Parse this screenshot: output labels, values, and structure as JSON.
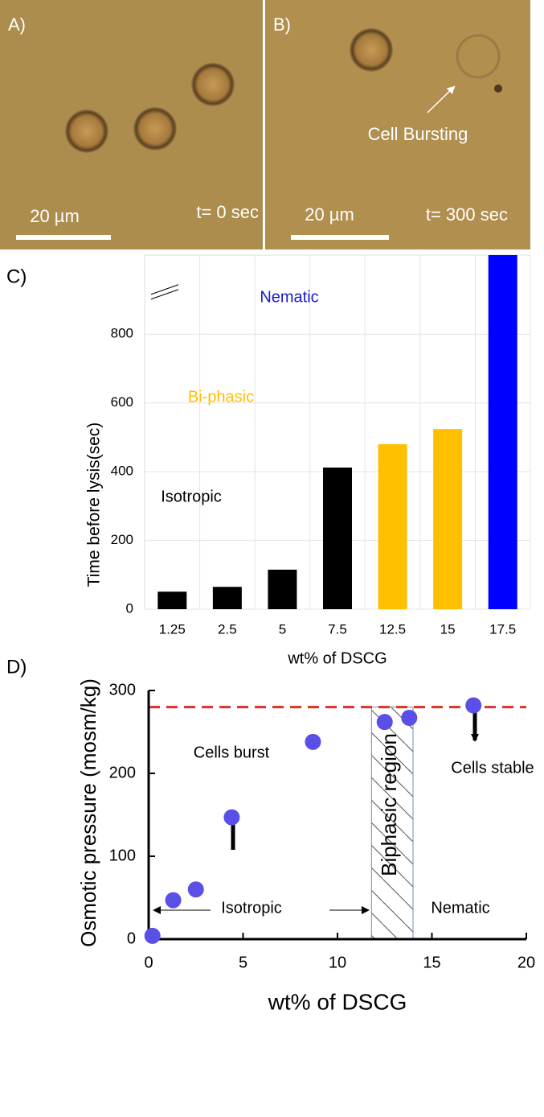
{
  "images": [
    {
      "label": "A)",
      "scale": "20 µm",
      "time": "t= 0 sec"
    },
    {
      "label": "B)",
      "scale": "20 µm",
      "time": "t= 300 sec",
      "annotation": "Cell Bursting"
    }
  ],
  "chart_data": [
    {
      "type": "bar",
      "panel": "C)",
      "ylabel": "Time before lysis(sec)",
      "xlabel": "wt% of DSCG",
      "categories": [
        "1.25",
        "2.5",
        "5",
        "7.5",
        "12.5",
        "15",
        "17.5"
      ],
      "values": [
        51,
        65,
        115,
        412,
        480,
        524,
        1030
      ],
      "colors": [
        "#000000",
        "#000000",
        "#000000",
        "#000000",
        "#ffc000",
        "#ffc000",
        "#0000ff"
      ],
      "ylim": [
        0,
        1030
      ],
      "yticks": [
        0,
        200,
        400,
        600,
        800
      ],
      "grid": true,
      "axis_break": 930,
      "annotations": [
        {
          "text": "Nematic",
          "color": "#1a1acc"
        },
        {
          "text": "Bi-phasic",
          "color": "#ffc000"
        },
        {
          "text": "Isotropic",
          "color": "#000000"
        }
      ]
    },
    {
      "type": "scatter",
      "panel": "D)",
      "ylabel": "Osmotic pressure (mosm/kg)",
      "xlabel": "wt% of DSCG",
      "x": [
        0.2,
        1.3,
        2.5,
        4.4,
        8.7,
        12.5,
        13.8,
        17.2
      ],
      "values": [
        4,
        47,
        60,
        147,
        238,
        262,
        267,
        282
      ],
      "color": "#5a4fe6",
      "xlim": [
        0,
        20
      ],
      "ylim": [
        0,
        300
      ],
      "xticks": [
        0,
        5,
        10,
        15,
        20
      ],
      "yticks": [
        0,
        100,
        200,
        300
      ],
      "reference_line": 280,
      "reference_color": "#e03020",
      "region": [
        11.8,
        14
      ],
      "annotations": [
        {
          "text": "Cells burst",
          "color": "#000000"
        },
        {
          "text": "Cells stable",
          "color": "#000000"
        },
        {
          "text": "Biphasic region",
          "color": "#000000"
        },
        {
          "text": "Isotropic",
          "color": "#000000"
        },
        {
          "text": "Nematic",
          "color": "#000000"
        }
      ]
    }
  ]
}
